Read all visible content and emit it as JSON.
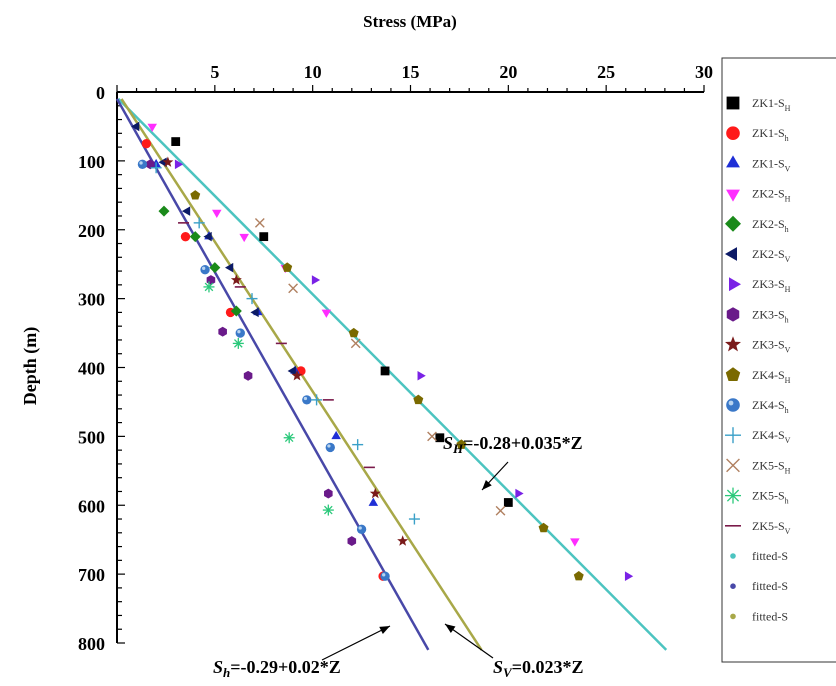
{
  "chart_data": {
    "type": "scatter",
    "title": "Stress (MPa)",
    "xlabel": "Stress (MPa)",
    "ylabel": "Depth (m)",
    "xlim": [
      0,
      30
    ],
    "ylim": [
      0,
      800
    ],
    "x_axis_position": "top",
    "y_axis_inverted": true,
    "xticks": [
      5,
      10,
      15,
      20,
      25,
      30
    ],
    "yticks": [
      0,
      100,
      200,
      300,
      400,
      500,
      600,
      700,
      800
    ],
    "grid": false,
    "legend_position": "right",
    "series": [
      {
        "name": "ZK1-S_H",
        "label_main": "ZK1-S",
        "label_sub": "H",
        "marker": "square",
        "color": "#000000",
        "points": [
          [
            3.0,
            72
          ],
          [
            7.5,
            210
          ],
          [
            13.7,
            405
          ],
          [
            16.5,
            502
          ],
          [
            20.0,
            596
          ]
        ]
      },
      {
        "name": "ZK1-S_h",
        "label_main": "ZK1-S",
        "label_sub": "h",
        "marker": "circle",
        "color": "#ff1a1a",
        "points": [
          [
            1.5,
            75
          ],
          [
            3.5,
            210
          ],
          [
            5.8,
            320
          ],
          [
            9.4,
            405
          ],
          [
            13.6,
            703
          ]
        ]
      },
      {
        "name": "ZK1-S_V",
        "label_main": "ZK1-S",
        "label_sub": "V",
        "marker": "triangle-up",
        "color": "#1f2fd6",
        "points": [
          [
            2.0,
            105
          ],
          [
            4.7,
            210
          ],
          [
            7.2,
            320
          ],
          [
            9.1,
            405
          ],
          [
            11.2,
            500
          ],
          [
            13.1,
            597
          ]
        ]
      },
      {
        "name": "ZK2-S_H",
        "label_main": "ZK2-S",
        "label_sub": "H",
        "marker": "triangle-down",
        "color": "#ff2dff",
        "points": [
          [
            1.8,
            50
          ],
          [
            5.1,
            175
          ],
          [
            6.5,
            210
          ],
          [
            8.6,
            255
          ],
          [
            10.7,
            320
          ],
          [
            23.4,
            652
          ]
        ]
      },
      {
        "name": "ZK2-S_h",
        "label_main": "ZK2-S",
        "label_sub": "h",
        "marker": "diamond",
        "color": "#1a8a1a",
        "points": [
          [
            2.4,
            173
          ],
          [
            4.0,
            210
          ],
          [
            5.0,
            255
          ],
          [
            6.1,
            318
          ]
        ]
      },
      {
        "name": "ZK2-S_V",
        "label_main": "ZK2-S",
        "label_sub": "V",
        "marker": "triangle-left",
        "color": "#0c1a66",
        "points": [
          [
            1.0,
            50
          ],
          [
            2.4,
            102
          ],
          [
            3.6,
            173
          ],
          [
            4.7,
            210
          ],
          [
            5.8,
            255
          ],
          [
            7.1,
            320
          ],
          [
            9.0,
            405
          ]
        ]
      },
      {
        "name": "ZK3-S_H",
        "label_main": "ZK3-S",
        "label_sub": "H",
        "marker": "triangle-right",
        "color": "#7a22e6",
        "points": [
          [
            3.1,
            105
          ],
          [
            10.1,
            273
          ],
          [
            15.5,
            412
          ],
          [
            20.5,
            583
          ],
          [
            26.1,
            703
          ]
        ]
      },
      {
        "name": "ZK3-S_h",
        "label_main": "ZK3-S",
        "label_sub": "h",
        "marker": "hexagon",
        "color": "#6a1a8a",
        "points": [
          [
            1.7,
            105
          ],
          [
            4.8,
            273
          ],
          [
            5.4,
            348
          ],
          [
            6.7,
            412
          ],
          [
            10.8,
            583
          ],
          [
            12.0,
            652
          ]
        ]
      },
      {
        "name": "ZK3-S_V",
        "label_main": "ZK3-S",
        "label_sub": "V",
        "marker": "star",
        "color": "#7a1a1a",
        "points": [
          [
            2.6,
            102
          ],
          [
            6.1,
            273
          ],
          [
            9.2,
            412
          ],
          [
            13.2,
            583
          ],
          [
            14.6,
            652
          ]
        ]
      },
      {
        "name": "ZK4-S_H",
        "label_main": "ZK4-S",
        "label_sub": "H",
        "marker": "pentagon",
        "color": "#7a6a00",
        "points": [
          [
            4.0,
            150
          ],
          [
            8.7,
            255
          ],
          [
            12.1,
            350
          ],
          [
            15.4,
            447
          ],
          [
            17.6,
            512
          ],
          [
            21.8,
            633
          ],
          [
            23.6,
            703
          ]
        ]
      },
      {
        "name": "ZK4-S_h",
        "label_main": "ZK4-S",
        "label_sub": "h",
        "marker": "sphere",
        "color": "#3a78c8",
        "points": [
          [
            1.3,
            105
          ],
          [
            4.5,
            258
          ],
          [
            6.3,
            350
          ],
          [
            9.7,
            447
          ],
          [
            10.9,
            516
          ],
          [
            12.5,
            635
          ],
          [
            13.7,
            703
          ]
        ]
      },
      {
        "name": "ZK4-S_V",
        "label_main": "ZK4-S",
        "label_sub": "V",
        "marker": "plus",
        "color": "#3aa0c8",
        "points": [
          [
            2.0,
            110
          ],
          [
            4.2,
            190
          ],
          [
            6.9,
            300
          ],
          [
            10.2,
            447
          ],
          [
            12.3,
            512
          ],
          [
            15.2,
            620
          ]
        ]
      },
      {
        "name": "ZK5-S_H",
        "label_main": "ZK5-S",
        "label_sub": "H",
        "marker": "x",
        "color": "#b08060",
        "points": [
          [
            7.3,
            190
          ],
          [
            9.0,
            285
          ],
          [
            12.2,
            365
          ],
          [
            16.1,
            500
          ],
          [
            19.6,
            608
          ]
        ]
      },
      {
        "name": "ZK5-S_h",
        "label_main": "ZK5-S",
        "label_sub": "h",
        "marker": "asterisk",
        "color": "#2ac87a",
        "points": [
          [
            4.7,
            283
          ],
          [
            6.2,
            365
          ],
          [
            8.8,
            502
          ],
          [
            10.8,
            607
          ]
        ]
      },
      {
        "name": "ZK5-S_V",
        "label_main": "ZK5-S",
        "label_sub": "V",
        "marker": "dash",
        "color": "#7a1a4a",
        "points": [
          [
            3.4,
            190
          ],
          [
            6.3,
            283
          ],
          [
            8.4,
            365
          ],
          [
            10.8,
            447
          ],
          [
            12.9,
            545
          ]
        ]
      }
    ],
    "fitted_lines": [
      {
        "name": "fitted-S_H",
        "label": "fitted-S",
        "color": "#4cc4c0",
        "intercept": -0.28,
        "slope": 0.035,
        "equation_prefix": "S",
        "equation_sub": "H",
        "equation_rest": "=-0.28+0.035*Z"
      },
      {
        "name": "fitted-S_h",
        "label": "fitted-S",
        "color": "#4848a8",
        "intercept": -0.29,
        "slope": 0.02,
        "equation_prefix": "S",
        "equation_sub": "h",
        "equation_rest": "=-0.29+0.02*Z"
      },
      {
        "name": "fitted-S_V",
        "label": "fitted-S",
        "color": "#a8a848",
        "intercept": 0,
        "slope": 0.023,
        "equation_prefix": "S",
        "equation_sub": "V",
        "equation_rest": "=0.023*Z"
      }
    ]
  }
}
